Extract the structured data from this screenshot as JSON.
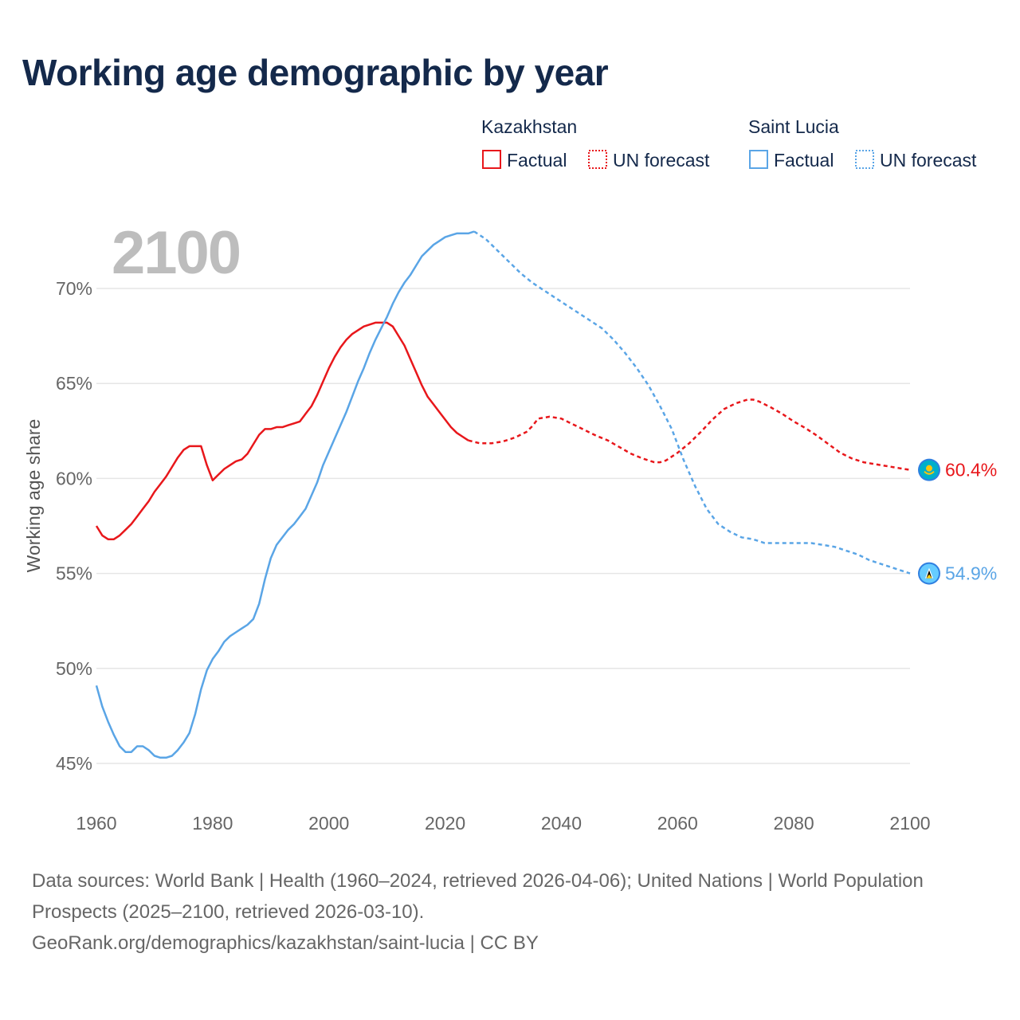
{
  "title": "Working age demographic by year",
  "chart_data": {
    "type": "line",
    "year_label": "2100",
    "ylabel": "Working age share",
    "xlim": [
      1960,
      2100
    ],
    "ylim": [
      44.5,
      73
    ],
    "x_ticks": [
      "1960",
      "1980",
      "2000",
      "2020",
      "2040",
      "2060",
      "2080",
      "2100"
    ],
    "y_ticks": [
      {
        "value": 45,
        "label": "45%"
      },
      {
        "value": 50,
        "label": "50%"
      },
      {
        "value": 55,
        "label": "55%"
      },
      {
        "value": 60,
        "label": "60%"
      },
      {
        "value": 65,
        "label": "65%"
      },
      {
        "value": 70,
        "label": "70%"
      }
    ],
    "legend": {
      "line_types": {
        "factual": "Factual",
        "forecast": "UN forecast"
      }
    },
    "series": [
      {
        "name": "Kazakhstan",
        "color": "#e8171b",
        "end_label": "60.4%",
        "icon": "kazakhstan-flag-icon",
        "factual": [
          [
            1960,
            57.5
          ],
          [
            1961,
            57.0
          ],
          [
            1962,
            56.8
          ],
          [
            1963,
            56.8
          ],
          [
            1964,
            57.0
          ],
          [
            1965,
            57.3
          ],
          [
            1966,
            57.6
          ],
          [
            1967,
            58.0
          ],
          [
            1968,
            58.4
          ],
          [
            1969,
            58.8
          ],
          [
            1970,
            59.3
          ],
          [
            1971,
            59.7
          ],
          [
            1972,
            60.1
          ],
          [
            1973,
            60.6
          ],
          [
            1974,
            61.1
          ],
          [
            1975,
            61.5
          ],
          [
            1976,
            61.7
          ],
          [
            1977,
            61.7
          ],
          [
            1978,
            61.7
          ],
          [
            1979,
            60.7
          ],
          [
            1980,
            59.9
          ],
          [
            1981,
            60.2
          ],
          [
            1982,
            60.5
          ],
          [
            1983,
            60.7
          ],
          [
            1984,
            60.9
          ],
          [
            1985,
            61.0
          ],
          [
            1986,
            61.3
          ],
          [
            1987,
            61.8
          ],
          [
            1988,
            62.3
          ],
          [
            1989,
            62.6
          ],
          [
            1990,
            62.6
          ],
          [
            1991,
            62.7
          ],
          [
            1992,
            62.7
          ],
          [
            1993,
            62.8
          ],
          [
            1994,
            62.9
          ],
          [
            1995,
            63.0
          ],
          [
            1996,
            63.4
          ],
          [
            1997,
            63.8
          ],
          [
            1998,
            64.4
          ],
          [
            1999,
            65.1
          ],
          [
            2000,
            65.8
          ],
          [
            2001,
            66.4
          ],
          [
            2002,
            66.9
          ],
          [
            2003,
            67.3
          ],
          [
            2004,
            67.6
          ],
          [
            2005,
            67.8
          ],
          [
            2006,
            68.0
          ],
          [
            2007,
            68.1
          ],
          [
            2008,
            68.2
          ],
          [
            2009,
            68.2
          ],
          [
            2010,
            68.2
          ],
          [
            2011,
            68.0
          ],
          [
            2012,
            67.5
          ],
          [
            2013,
            67.0
          ],
          [
            2014,
            66.3
          ],
          [
            2015,
            65.6
          ],
          [
            2016,
            64.9
          ],
          [
            2017,
            64.3
          ],
          [
            2018,
            63.9
          ],
          [
            2019,
            63.5
          ],
          [
            2020,
            63.1
          ],
          [
            2021,
            62.7
          ],
          [
            2022,
            62.4
          ],
          [
            2023,
            62.2
          ],
          [
            2024,
            62.0
          ]
        ],
        "forecast": [
          [
            2024,
            62.0
          ],
          [
            2026,
            61.85
          ],
          [
            2028,
            61.85
          ],
          [
            2030,
            61.95
          ],
          [
            2032,
            62.15
          ],
          [
            2034,
            62.45
          ],
          [
            2035,
            62.75
          ],
          [
            2036,
            63.15
          ],
          [
            2038,
            63.25
          ],
          [
            2040,
            63.15
          ],
          [
            2042,
            62.85
          ],
          [
            2044,
            62.55
          ],
          [
            2046,
            62.25
          ],
          [
            2048,
            62.0
          ],
          [
            2050,
            61.65
          ],
          [
            2052,
            61.3
          ],
          [
            2054,
            61.05
          ],
          [
            2056,
            60.85
          ],
          [
            2057,
            60.85
          ],
          [
            2058,
            60.95
          ],
          [
            2060,
            61.35
          ],
          [
            2062,
            61.85
          ],
          [
            2064,
            62.45
          ],
          [
            2066,
            63.1
          ],
          [
            2068,
            63.65
          ],
          [
            2070,
            63.95
          ],
          [
            2072,
            64.15
          ],
          [
            2073,
            64.15
          ],
          [
            2074,
            64.05
          ],
          [
            2076,
            63.75
          ],
          [
            2078,
            63.4
          ],
          [
            2080,
            63.0
          ],
          [
            2082,
            62.65
          ],
          [
            2084,
            62.25
          ],
          [
            2086,
            61.8
          ],
          [
            2088,
            61.35
          ],
          [
            2090,
            61.05
          ],
          [
            2092,
            60.85
          ],
          [
            2094,
            60.75
          ],
          [
            2096,
            60.65
          ],
          [
            2098,
            60.55
          ],
          [
            2100,
            60.45
          ]
        ]
      },
      {
        "name": "Saint Lucia",
        "color": "#5aa5e6",
        "end_label": "54.9%",
        "icon": "saint-lucia-flag-icon",
        "factual": [
          [
            1960,
            49.1
          ],
          [
            1961,
            48.0
          ],
          [
            1962,
            47.2
          ],
          [
            1963,
            46.5
          ],
          [
            1964,
            45.9
          ],
          [
            1965,
            45.6
          ],
          [
            1966,
            45.6
          ],
          [
            1967,
            45.9
          ],
          [
            1968,
            45.9
          ],
          [
            1969,
            45.7
          ],
          [
            1970,
            45.4
          ],
          [
            1971,
            45.3
          ],
          [
            1972,
            45.3
          ],
          [
            1973,
            45.4
          ],
          [
            1974,
            45.7
          ],
          [
            1975,
            46.1
          ],
          [
            1976,
            46.6
          ],
          [
            1977,
            47.6
          ],
          [
            1978,
            48.9
          ],
          [
            1979,
            49.9
          ],
          [
            1980,
            50.5
          ],
          [
            1981,
            50.9
          ],
          [
            1982,
            51.4
          ],
          [
            1983,
            51.7
          ],
          [
            1984,
            51.9
          ],
          [
            1985,
            52.1
          ],
          [
            1986,
            52.3
          ],
          [
            1987,
            52.6
          ],
          [
            1988,
            53.4
          ],
          [
            1989,
            54.7
          ],
          [
            1990,
            55.8
          ],
          [
            1991,
            56.5
          ],
          [
            1992,
            56.9
          ],
          [
            1993,
            57.3
          ],
          [
            1994,
            57.6
          ],
          [
            1995,
            58.0
          ],
          [
            1996,
            58.4
          ],
          [
            1997,
            59.1
          ],
          [
            1998,
            59.8
          ],
          [
            1999,
            60.7
          ],
          [
            2000,
            61.4
          ],
          [
            2001,
            62.1
          ],
          [
            2002,
            62.8
          ],
          [
            2003,
            63.5
          ],
          [
            2004,
            64.3
          ],
          [
            2005,
            65.1
          ],
          [
            2006,
            65.8
          ],
          [
            2007,
            66.6
          ],
          [
            2008,
            67.3
          ],
          [
            2009,
            67.9
          ],
          [
            2010,
            68.5
          ],
          [
            2011,
            69.2
          ],
          [
            2012,
            69.8
          ],
          [
            2013,
            70.3
          ],
          [
            2014,
            70.7
          ],
          [
            2015,
            71.2
          ],
          [
            2016,
            71.7
          ],
          [
            2017,
            72.0
          ],
          [
            2018,
            72.3
          ],
          [
            2019,
            72.5
          ],
          [
            2020,
            72.7
          ],
          [
            2021,
            72.8
          ],
          [
            2022,
            72.9
          ],
          [
            2023,
            72.9
          ],
          [
            2024,
            72.9
          ],
          [
            2025,
            73.0
          ]
        ],
        "forecast": [
          [
            2025,
            73.0
          ],
          [
            2027,
            72.6
          ],
          [
            2029,
            72.0
          ],
          [
            2031,
            71.4
          ],
          [
            2033,
            70.8
          ],
          [
            2035,
            70.3
          ],
          [
            2037,
            69.9
          ],
          [
            2039,
            69.5
          ],
          [
            2041,
            69.1
          ],
          [
            2043,
            68.7
          ],
          [
            2045,
            68.3
          ],
          [
            2047,
            67.9
          ],
          [
            2049,
            67.3
          ],
          [
            2051,
            66.6
          ],
          [
            2053,
            65.8
          ],
          [
            2055,
            64.9
          ],
          [
            2057,
            63.8
          ],
          [
            2059,
            62.6
          ],
          [
            2061,
            61.0
          ],
          [
            2063,
            59.6
          ],
          [
            2065,
            58.4
          ],
          [
            2067,
            57.6
          ],
          [
            2069,
            57.2
          ],
          [
            2071,
            56.9
          ],
          [
            2073,
            56.8
          ],
          [
            2075,
            56.6
          ],
          [
            2077,
            56.6
          ],
          [
            2079,
            56.6
          ],
          [
            2081,
            56.6
          ],
          [
            2083,
            56.6
          ],
          [
            2085,
            56.5
          ],
          [
            2087,
            56.4
          ],
          [
            2089,
            56.2
          ],
          [
            2091,
            56.0
          ],
          [
            2093,
            55.7
          ],
          [
            2095,
            55.5
          ],
          [
            2097,
            55.3
          ],
          [
            2099,
            55.1
          ],
          [
            2100,
            55.0
          ]
        ]
      }
    ]
  },
  "footer": {
    "sources": "Data sources: World Bank | Health (1960–2024, retrieved 2026-04-06); United Nations | World Population Prospects (2025–2100, retrieved 2026-03-10).",
    "attribution": "GeoRank.org/demographics/kazakhstan/saint-lucia | CC BY"
  }
}
